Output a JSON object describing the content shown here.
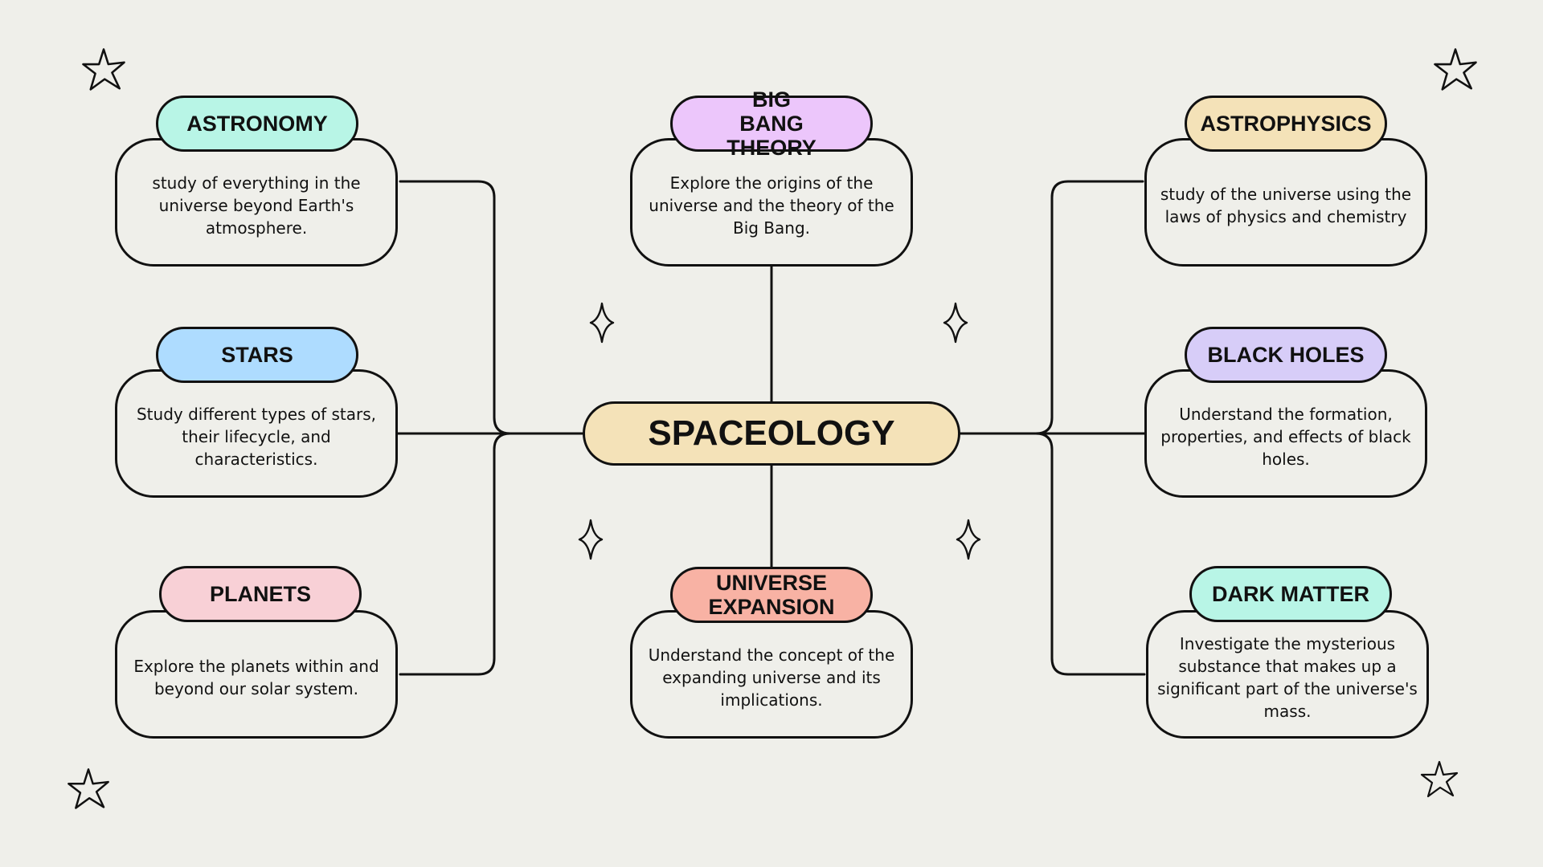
{
  "center": {
    "title": "SPACEOLOGY",
    "color": "#f4e2b8"
  },
  "topics": [
    {
      "id": "astronomy",
      "title": "ASTRONOMY",
      "color": "#b8f5e6",
      "description": "study of everything in the universe beyond Earth's atmosphere."
    },
    {
      "id": "stars",
      "title": "STARS",
      "color": "#aedcff",
      "description": "Study different types of stars, their lifecycle, and characteristics."
    },
    {
      "id": "planets",
      "title": "PLANETS",
      "color": "#f8d0d6",
      "description": "Explore the planets within and beyond our solar system."
    },
    {
      "id": "big-bang-theory",
      "title": "BIG BANG THEORY",
      "color": "#ecc6fb",
      "description": "Explore the origins of the universe and the theory of the Big Bang."
    },
    {
      "id": "universe-expansion",
      "title": "UNIVERSE EXPANSION",
      "color": "#f8b2a4",
      "description": "Understand the concept of the expanding universe and its implications."
    },
    {
      "id": "astrophysics",
      "title": "ASTROPHYSICS",
      "color": "#f4e2b8",
      "description": "study of the universe using the laws of physics and chemistry"
    },
    {
      "id": "black-holes",
      "title": "BLACK HOLES",
      "color": "#d7cdf8",
      "description": "Understand the formation, properties, and effects of black holes."
    },
    {
      "id": "dark-matter",
      "title": "DARK MATTER",
      "color": "#b8f5e6",
      "description": "Investigate the mysterious substance that makes up a significant part of the universe's mass."
    }
  ],
  "decorations": [
    "star-outline-icon",
    "four-point-sparkle-icon"
  ]
}
